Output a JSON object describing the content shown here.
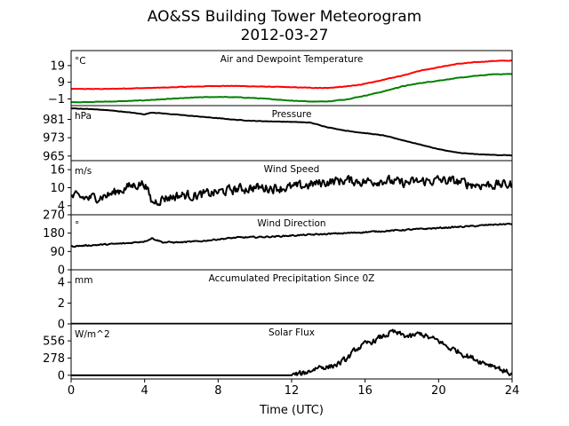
{
  "chart_data": {
    "type": "line",
    "title": "AO&SS Building Tower Meteorogram",
    "subtitle": "2012-03-27",
    "xlabel": "Time (UTC)",
    "xlim": [
      0,
      24
    ],
    "xticks": [
      0,
      4,
      8,
      12,
      16,
      20,
      24
    ],
    "grid": false,
    "panels": [
      {
        "id": "temperature",
        "title": "Air and Dewpoint Temperature",
        "unit": "°C",
        "ylim": [
          -5,
          28
        ],
        "yticks": [
          19,
          9,
          -1
        ],
        "ytick_labels": [
          "19",
          "9",
          "−1"
        ],
        "series": [
          {
            "key": "air",
            "color": "#ff0000",
            "noise": 0.25,
            "x": [
              0,
              1,
              2,
              3,
              4,
              5,
              6,
              7,
              8,
              9,
              10,
              11,
              12,
              13,
              14,
              15,
              16,
              17,
              18,
              19,
              20,
              21,
              22,
              23,
              24
            ],
            "y": [
              5.0,
              5.0,
              5.0,
              5.3,
              5.5,
              5.8,
              6.2,
              6.5,
              6.8,
              6.8,
              6.5,
              6.3,
              6.0,
              5.7,
              5.6,
              6.5,
              8.0,
              10.5,
              13.0,
              16.0,
              18.0,
              20.0,
              21.0,
              21.8,
              22.0
            ]
          },
          {
            "key": "dewpoint",
            "color": "#008000",
            "noise": 0.25,
            "x": [
              0,
              1,
              2,
              3,
              4,
              5,
              6,
              7,
              8,
              9,
              10,
              11,
              12,
              13,
              14,
              15,
              16,
              17,
              18,
              19,
              20,
              21,
              22,
              23,
              24
            ],
            "y": [
              -3.0,
              -2.8,
              -2.6,
              -2.3,
              -1.8,
              -1.2,
              -0.6,
              0.0,
              0.2,
              0.0,
              -0.5,
              -1.2,
              -2.0,
              -2.5,
              -2.5,
              -1.2,
              1.0,
              3.5,
              6.5,
              8.5,
              10.0,
              11.5,
              12.8,
              13.8,
              14.0
            ]
          }
        ]
      },
      {
        "id": "pressure",
        "title": "Pressure",
        "unit": "hPa",
        "ylim": [
          963,
          987
        ],
        "yticks": [
          981,
          973,
          965
        ],
        "ytick_labels": [
          "981",
          "973",
          "965"
        ],
        "series": [
          {
            "key": "pressure",
            "color": "#000000",
            "noise": 0.15,
            "x": [
              0,
              1,
              2,
              3,
              4,
              4.4,
              5,
              6,
              7,
              8,
              9,
              10,
              11,
              12,
              13,
              14,
              15,
              16,
              17,
              18,
              19,
              20,
              21,
              22,
              23,
              24
            ],
            "y": [
              985.8,
              985.5,
              985.0,
              984.2,
              983.2,
              984.0,
              983.6,
              982.9,
              982.2,
              981.5,
              980.8,
              980.3,
              980.1,
              979.9,
              979.6,
              977.5,
              976.0,
              975.0,
              974.0,
              972.0,
              970.0,
              968.0,
              966.5,
              965.8,
              965.5,
              965.3
            ]
          }
        ]
      },
      {
        "id": "wind_speed",
        "title": "Wind Speed",
        "unit": "m/s",
        "ylim": [
          1,
          19
        ],
        "yticks": [
          16,
          10,
          4
        ],
        "ytick_labels": [
          "16",
          "10",
          "4"
        ],
        "series": [
          {
            "key": "speed",
            "color": "#000000",
            "noise": 2.5,
            "x": [
              0,
              1,
              2,
              3,
              3.5,
              4,
              4.4,
              5,
              6,
              7,
              8,
              9,
              10,
              11,
              12,
              13,
              14,
              15,
              16,
              17,
              18,
              19,
              20,
              21,
              22,
              23,
              24
            ],
            "y": [
              7.0,
              6.5,
              7.5,
              10.0,
              11.0,
              11.5,
              5.0,
              6.5,
              7.5,
              7.5,
              8.5,
              9.5,
              10.0,
              10.0,
              10.0,
              11.0,
              12.0,
              12.5,
              12.0,
              12.5,
              11.5,
              12.0,
              12.5,
              12.0,
              11.0,
              11.0,
              11.0
            ]
          }
        ]
      },
      {
        "id": "wind_direction",
        "title": "Wind Direction",
        "unit": "°",
        "ylim": [
          0,
          270
        ],
        "yticks": [
          270,
          180,
          90,
          0
        ],
        "ytick_labels": [
          "270",
          "180",
          "90",
          "0"
        ],
        "series": [
          {
            "key": "direction",
            "color": "#000000",
            "noise": 5,
            "x": [
              0,
              1,
              2,
              3,
              4,
              4.4,
              5,
              6,
              7,
              8,
              9,
              10,
              11,
              12,
              13,
              14,
              15,
              16,
              17,
              18,
              19,
              20,
              21,
              22,
              23,
              24
            ],
            "y": [
              115,
              120,
              125,
              130,
              140,
              155,
              135,
              135,
              140,
              150,
              158,
              160,
              163,
              168,
              172,
              176,
              180,
              185,
              190,
              195,
              200,
              205,
              210,
              215,
              222,
              225
            ]
          }
        ]
      },
      {
        "id": "precipitation",
        "title": "Accumulated Precipitation Since 0Z",
        "unit": "mm",
        "ylim": [
          0,
          5.2
        ],
        "yticks": [
          4,
          2,
          0
        ],
        "ytick_labels": [
          "4",
          "2",
          "0"
        ],
        "series": [
          {
            "key": "precip",
            "color": "#000000",
            "noise": 0,
            "x": [
              0,
              24
            ],
            "y": [
              0,
              0
            ]
          }
        ]
      },
      {
        "id": "solar",
        "title": "Solar Flux",
        "unit": "W/m^2",
        "ylim": [
          -60,
          830
        ],
        "yticks": [
          556,
          278,
          0
        ],
        "ytick_labels": [
          "556",
          "278",
          "0"
        ],
        "series": [
          {
            "key": "solar",
            "color": "#000000",
            "noise": 70,
            "x": [
              0,
              11,
              12,
              12.5,
              13,
              13.5,
              14,
              14.5,
              15,
              15.5,
              16,
              16.5,
              17,
              17.5,
              18,
              18.5,
              19,
              19.5,
              20,
              20.5,
              21,
              21.5,
              22,
              22.5,
              23,
              23.5,
              24
            ],
            "y": [
              0,
              0,
              0,
              20,
              70,
              140,
              130,
              180,
              260,
              420,
              500,
              560,
              630,
              700,
              650,
              620,
              680,
              600,
              560,
              450,
              400,
              320,
              260,
              200,
              160,
              80,
              15
            ]
          }
        ]
      }
    ]
  }
}
